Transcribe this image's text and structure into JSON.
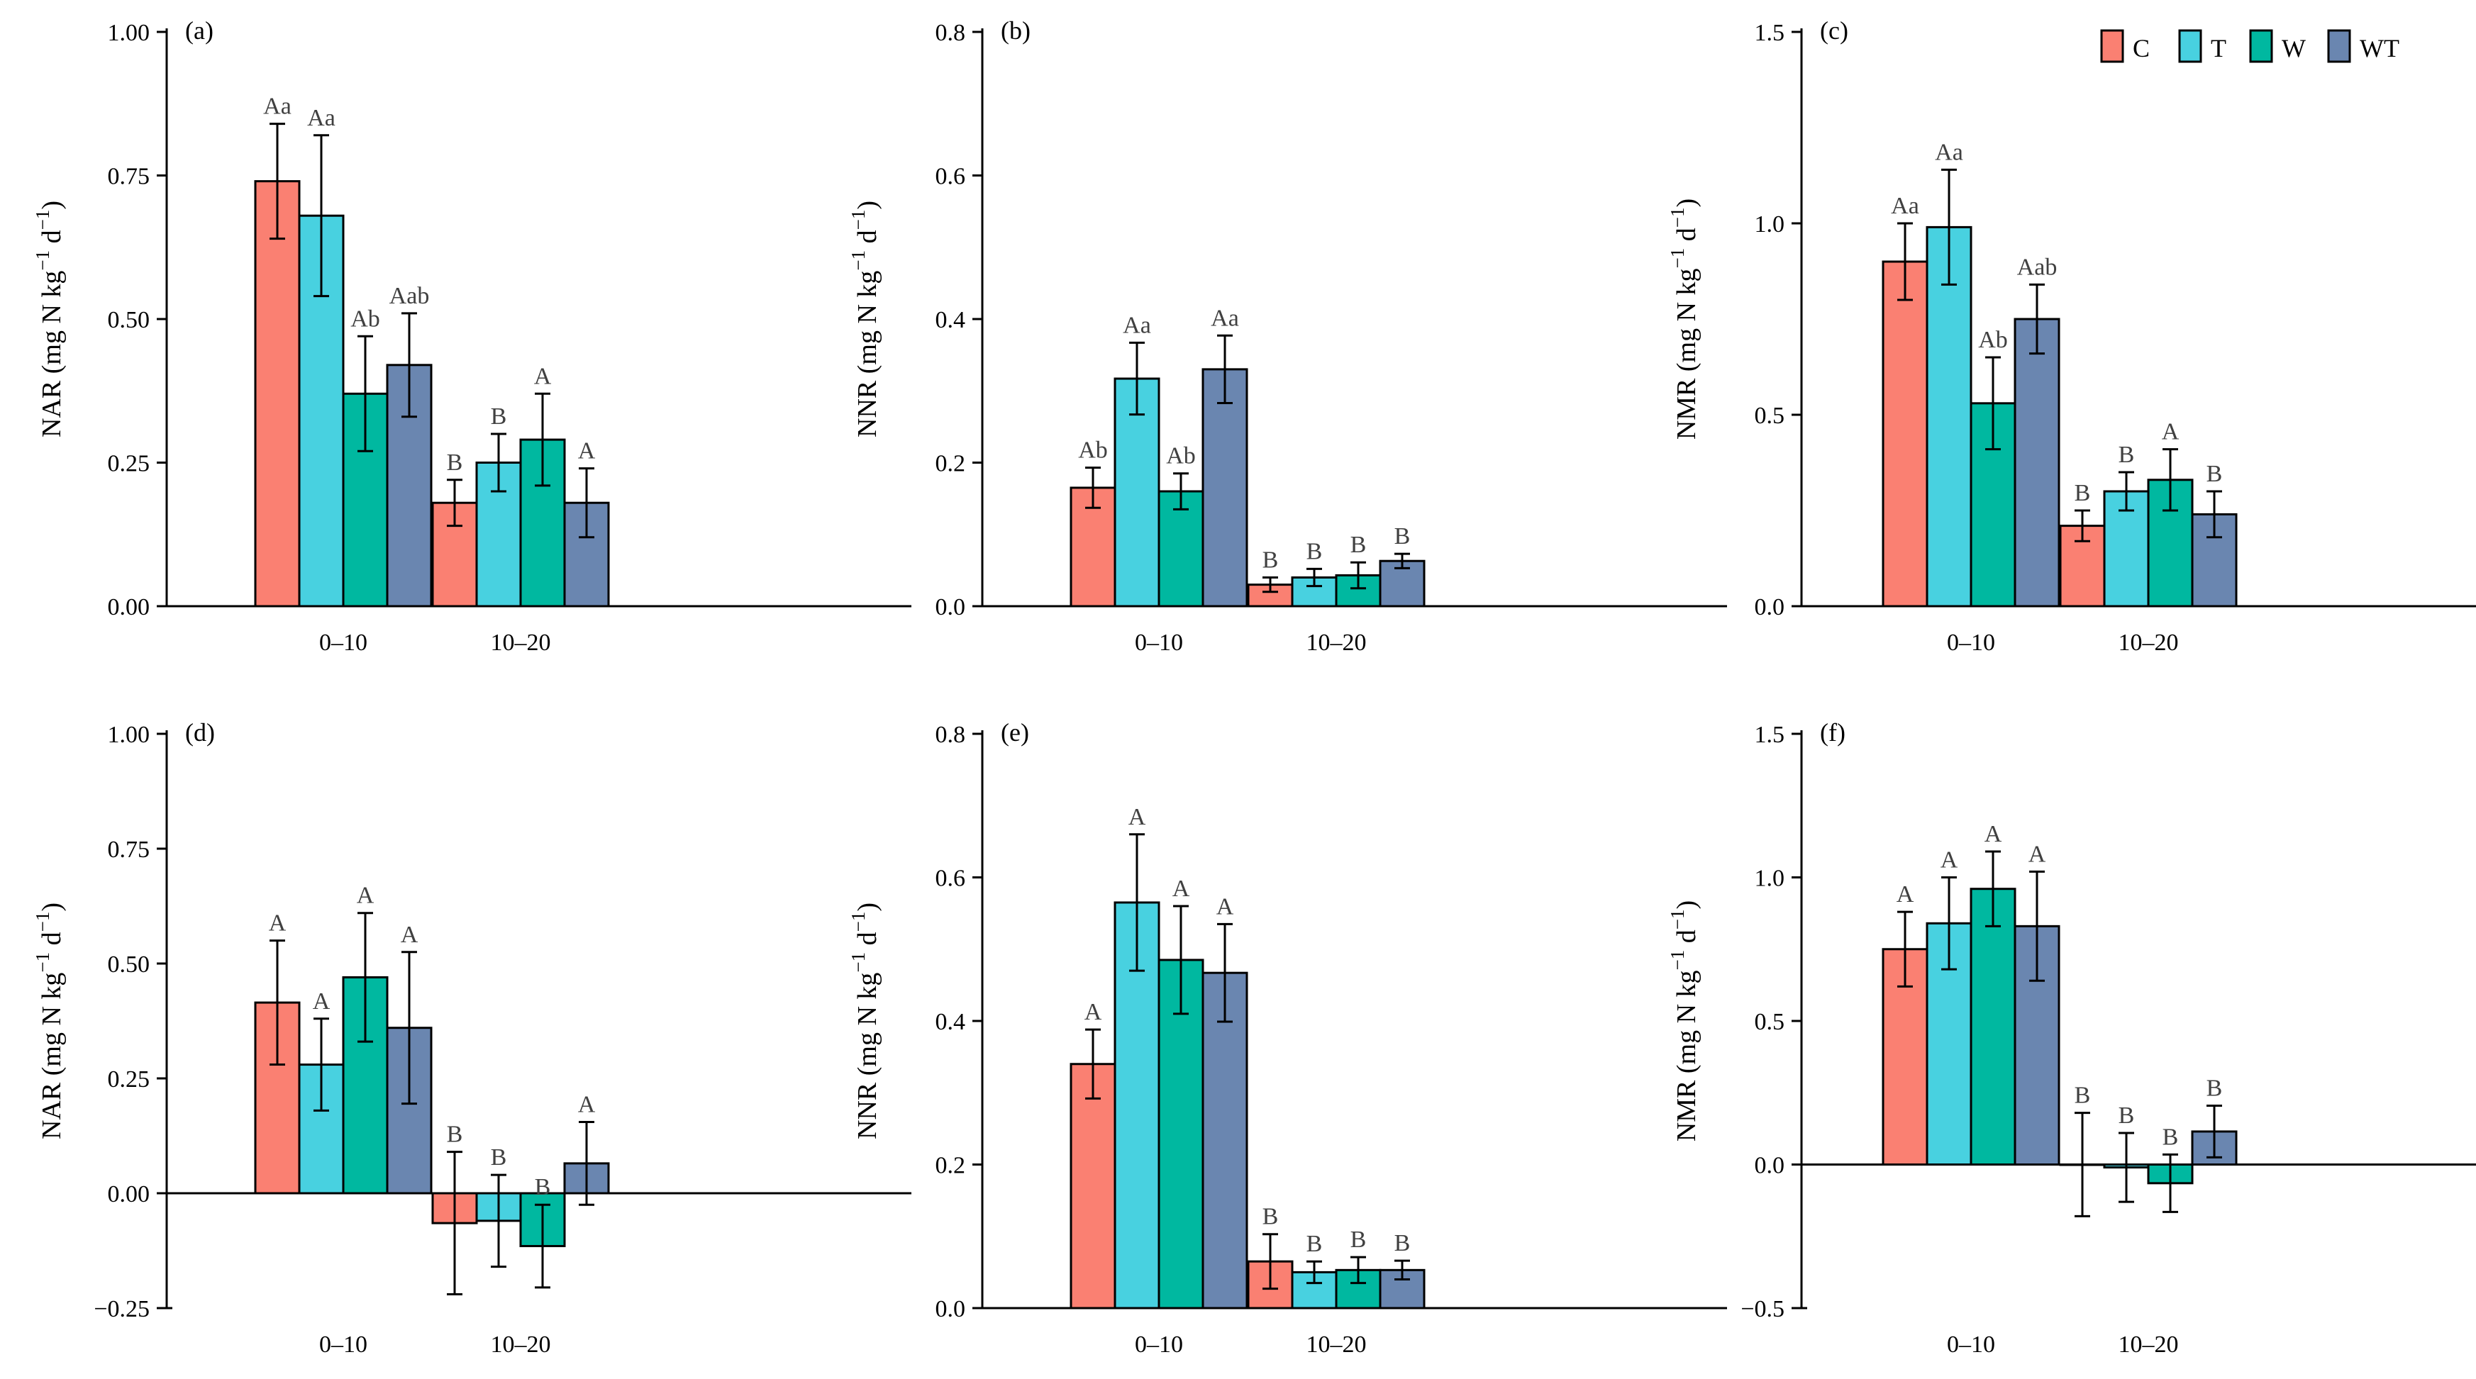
{
  "colors": {
    "C": "#FA8072",
    "T": "#48D1E0",
    "W": "#00B8A0",
    "WT": "#6A86B0"
  },
  "legend": [
    {
      "key": "C",
      "label": "C"
    },
    {
      "key": "T",
      "label": "T"
    },
    {
      "key": "W",
      "label": "W"
    },
    {
      "key": "WT",
      "label": "WT"
    }
  ],
  "chart_data": [
    {
      "type": "bar",
      "panel": "(a)",
      "ylabel": "NAR (mg N kg",
      "ylim": [
        0,
        1
      ],
      "yticks": [
        "0.00",
        "0.25",
        "0.50",
        "0.75",
        "1.00"
      ],
      "yvals": [
        0,
        0.25,
        0.5,
        0.75,
        1
      ],
      "categories": [
        "0–10",
        "10–20"
      ],
      "series": [
        {
          "name": "C",
          "values": [
            0.74,
            0.18
          ],
          "errors": [
            0.1,
            0.04
          ],
          "letters": [
            "Aa",
            "B"
          ]
        },
        {
          "name": "T",
          "values": [
            0.68,
            0.25
          ],
          "errors": [
            0.14,
            0.05
          ],
          "letters": [
            "Aa",
            "B"
          ]
        },
        {
          "name": "W",
          "values": [
            0.37,
            0.29
          ],
          "errors": [
            0.1,
            0.08
          ],
          "letters": [
            "Ab",
            "A"
          ]
        },
        {
          "name": "WT",
          "values": [
            0.42,
            0.18
          ],
          "errors": [
            0.09,
            0.06
          ],
          "letters": [
            "Aab",
            "A"
          ]
        }
      ]
    },
    {
      "type": "bar",
      "panel": "(b)",
      "ylabel": "NNR (mg N kg",
      "ylim": [
        0,
        0.8
      ],
      "yticks": [
        "0.0",
        "0.2",
        "0.4",
        "0.6",
        "0.8"
      ],
      "yvals": [
        0,
        0.2,
        0.4,
        0.6,
        0.8
      ],
      "categories": [
        "0–10",
        "10–20"
      ],
      "series": [
        {
          "name": "C",
          "values": [
            0.165,
            0.03
          ],
          "errors": [
            0.028,
            0.01
          ],
          "letters": [
            "Ab",
            "B"
          ]
        },
        {
          "name": "T",
          "values": [
            0.317,
            0.04
          ],
          "errors": [
            0.05,
            0.012
          ],
          "letters": [
            "Aa",
            "B"
          ]
        },
        {
          "name": "W",
          "values": [
            0.16,
            0.043
          ],
          "errors": [
            0.025,
            0.018
          ],
          "letters": [
            "Ab",
            "B"
          ]
        },
        {
          "name": "WT",
          "values": [
            0.33,
            0.063
          ],
          "errors": [
            0.047,
            0.01
          ],
          "letters": [
            "Aa",
            "B"
          ]
        }
      ]
    },
    {
      "type": "bar",
      "panel": "(c)",
      "ylabel": "NMR (mg N kg",
      "ylim": [
        0,
        1.5
      ],
      "yticks": [
        "0.0",
        "0.5",
        "1.0",
        "1.5"
      ],
      "yvals": [
        0,
        0.5,
        1,
        1.5
      ],
      "categories": [
        "0–10",
        "10–20"
      ],
      "series": [
        {
          "name": "C",
          "values": [
            0.9,
            0.21
          ],
          "errors": [
            0.1,
            0.04
          ],
          "letters": [
            "Aa",
            "B"
          ]
        },
        {
          "name": "T",
          "values": [
            0.99,
            0.3
          ],
          "errors": [
            0.15,
            0.05
          ],
          "letters": [
            "Aa",
            "B"
          ]
        },
        {
          "name": "W",
          "values": [
            0.53,
            0.33
          ],
          "errors": [
            0.12,
            0.08
          ],
          "letters": [
            "Ab",
            "A"
          ]
        },
        {
          "name": "WT",
          "values": [
            0.75,
            0.24
          ],
          "errors": [
            0.09,
            0.06
          ],
          "letters": [
            "Aab",
            "B"
          ]
        }
      ]
    },
    {
      "type": "bar",
      "panel": "(d)",
      "ylabel": "NAR (mg N kg",
      "ylim": [
        -0.25,
        1
      ],
      "yticks": [
        "−0.25",
        "0.00",
        "0.25",
        "0.50",
        "0.75",
        "1.00"
      ],
      "yvals": [
        -0.25,
        0,
        0.25,
        0.5,
        0.75,
        1
      ],
      "categories": [
        "0–10",
        "10–20"
      ],
      "series": [
        {
          "name": "C",
          "values": [
            0.415,
            -0.065
          ],
          "errors": [
            0.135,
            0.155
          ],
          "letters": [
            "A",
            "B"
          ]
        },
        {
          "name": "T",
          "values": [
            0.28,
            -0.06
          ],
          "errors": [
            0.1,
            0.1
          ],
          "letters": [
            "A",
            "B"
          ]
        },
        {
          "name": "W",
          "values": [
            0.47,
            -0.115
          ],
          "errors": [
            0.14,
            0.09
          ],
          "letters": [
            "A",
            "B"
          ]
        },
        {
          "name": "WT",
          "values": [
            0.36,
            0.065
          ],
          "errors": [
            0.165,
            0.09
          ],
          "letters": [
            "A",
            "A"
          ]
        }
      ]
    },
    {
      "type": "bar",
      "panel": "(e)",
      "ylabel": "NNR (mg N kg",
      "ylim": [
        0,
        0.8
      ],
      "yticks": [
        "0.0",
        "0.2",
        "0.4",
        "0.6",
        "0.8"
      ],
      "yvals": [
        0,
        0.2,
        0.4,
        0.6,
        0.8
      ],
      "categories": [
        "0–10",
        "10–20"
      ],
      "series": [
        {
          "name": "C",
          "values": [
            0.34,
            0.065
          ],
          "errors": [
            0.048,
            0.038
          ],
          "letters": [
            "A",
            "B"
          ]
        },
        {
          "name": "T",
          "values": [
            0.565,
            0.05
          ],
          "errors": [
            0.095,
            0.015
          ],
          "letters": [
            "A",
            "B"
          ]
        },
        {
          "name": "W",
          "values": [
            0.485,
            0.053
          ],
          "errors": [
            0.075,
            0.018
          ],
          "letters": [
            "A",
            "B"
          ]
        },
        {
          "name": "WT",
          "values": [
            0.467,
            0.053
          ],
          "errors": [
            0.068,
            0.013
          ],
          "letters": [
            "A",
            "B"
          ]
        }
      ]
    },
    {
      "type": "bar",
      "panel": "(f)",
      "ylabel": "NMR (mg N kg",
      "ylim": [
        -0.5,
        1.5
      ],
      "yticks": [
        "−0.5",
        "0.0",
        "0.5",
        "1.0",
        "1.5"
      ],
      "yvals": [
        -0.5,
        0,
        0.5,
        1,
        1.5
      ],
      "categories": [
        "0–10",
        "10–20"
      ],
      "series": [
        {
          "name": "C",
          "values": [
            0.75,
            0
          ],
          "errors": [
            0.13,
            0.18
          ],
          "letters": [
            "A",
            "B"
          ]
        },
        {
          "name": "T",
          "values": [
            0.84,
            -0.01
          ],
          "errors": [
            0.16,
            0.12
          ],
          "letters": [
            "A",
            "B"
          ]
        },
        {
          "name": "W",
          "values": [
            0.96,
            -0.065
          ],
          "errors": [
            0.13,
            0.1
          ],
          "letters": [
            "A",
            "B"
          ]
        },
        {
          "name": "WT",
          "values": [
            0.83,
            0.115
          ],
          "errors": [
            0.19,
            0.09
          ],
          "letters": [
            "A",
            "B"
          ]
        }
      ]
    }
  ]
}
